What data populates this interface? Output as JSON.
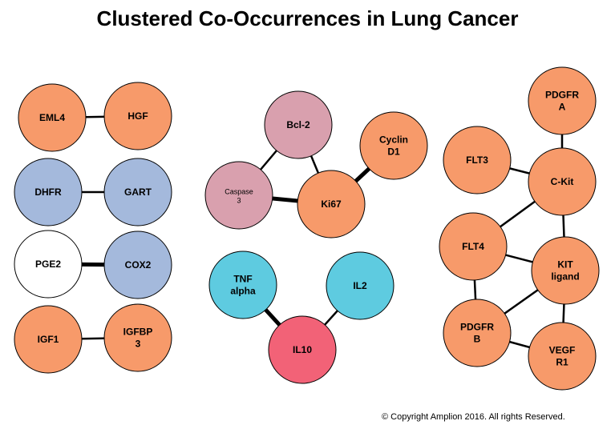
{
  "title": "Clustered Co-Occurrences in Lung Cancer",
  "copyright": "© Copyright Amplion 2016.  All rights Reserved.",
  "colors": {
    "orange": "#F79A6A",
    "blue": "#A4B9DC",
    "white": "#FFFFFF",
    "pink": "#D9A0AE",
    "cyan": "#5ECBE0",
    "red": "#F26277",
    "stroke": "#000000"
  },
  "nodes": [
    {
      "id": "eml4",
      "lines": [
        "EML4"
      ],
      "color": "orange"
    },
    {
      "id": "hgf",
      "lines": [
        "HGF"
      ],
      "color": "orange"
    },
    {
      "id": "dhfr",
      "lines": [
        "DHFR"
      ],
      "color": "blue"
    },
    {
      "id": "gart",
      "lines": [
        "GART"
      ],
      "color": "blue"
    },
    {
      "id": "pge2",
      "lines": [
        "PGE2"
      ],
      "color": "white"
    },
    {
      "id": "cox2",
      "lines": [
        "COX2"
      ],
      "color": "blue"
    },
    {
      "id": "igf1",
      "lines": [
        "IGF1"
      ],
      "color": "orange"
    },
    {
      "id": "igfbp3",
      "lines": [
        "IGFBP",
        "3"
      ],
      "color": "orange"
    },
    {
      "id": "bcl2",
      "lines": [
        "Bcl-2"
      ],
      "color": "pink"
    },
    {
      "id": "caspase3",
      "lines": [
        "Caspase",
        "3"
      ],
      "color": "pink",
      "small": true
    },
    {
      "id": "ki67",
      "lines": [
        "Ki67"
      ],
      "color": "orange"
    },
    {
      "id": "cyclind1",
      "lines": [
        "Cyclin",
        "D1"
      ],
      "color": "orange"
    },
    {
      "id": "tnfalpha",
      "lines": [
        "TNF",
        "alpha"
      ],
      "color": "cyan"
    },
    {
      "id": "il2",
      "lines": [
        "IL2"
      ],
      "color": "cyan"
    },
    {
      "id": "il10",
      "lines": [
        "IL10"
      ],
      "color": "red"
    },
    {
      "id": "pdgfra",
      "lines": [
        "PDGFR",
        "A"
      ],
      "color": "orange"
    },
    {
      "id": "flt3",
      "lines": [
        "FLT3"
      ],
      "color": "orange"
    },
    {
      "id": "ckit",
      "lines": [
        "C-Kit"
      ],
      "color": "orange"
    },
    {
      "id": "flt4",
      "lines": [
        "FLT4"
      ],
      "color": "orange"
    },
    {
      "id": "kitligand",
      "lines": [
        "KIT",
        "ligand"
      ],
      "color": "orange"
    },
    {
      "id": "pdgfrb",
      "lines": [
        "PDGFR",
        "B"
      ],
      "color": "orange"
    },
    {
      "id": "vegfr1",
      "lines": [
        "VEGF",
        "R1"
      ],
      "color": "orange"
    }
  ],
  "edges": [
    {
      "from": "eml4",
      "to": "hgf",
      "weight": "normal"
    },
    {
      "from": "dhfr",
      "to": "gart",
      "weight": "normal"
    },
    {
      "from": "pge2",
      "to": "cox2",
      "weight": "thick"
    },
    {
      "from": "igf1",
      "to": "igfbp3",
      "weight": "normal"
    },
    {
      "from": "bcl2",
      "to": "caspase3",
      "weight": "normal"
    },
    {
      "from": "bcl2",
      "to": "ki67",
      "weight": "normal"
    },
    {
      "from": "caspase3",
      "to": "ki67",
      "weight": "thick"
    },
    {
      "from": "ki67",
      "to": "cyclind1",
      "weight": "thick"
    },
    {
      "from": "tnfalpha",
      "to": "il10",
      "weight": "thick"
    },
    {
      "from": "il2",
      "to": "il10",
      "weight": "normal"
    },
    {
      "from": "pdgfra",
      "to": "ckit",
      "weight": "normal"
    },
    {
      "from": "flt3",
      "to": "ckit",
      "weight": "normal"
    },
    {
      "from": "ckit",
      "to": "flt4",
      "weight": "normal"
    },
    {
      "from": "ckit",
      "to": "kitligand",
      "weight": "normal"
    },
    {
      "from": "flt4",
      "to": "kitligand",
      "weight": "normal"
    },
    {
      "from": "flt4",
      "to": "pdgfrb",
      "weight": "normal"
    },
    {
      "from": "kitligand",
      "to": "pdgfrb",
      "weight": "normal"
    },
    {
      "from": "kitligand",
      "to": "vegfr1",
      "weight": "normal"
    },
    {
      "from": "pdgfrb",
      "to": "vegfr1",
      "weight": "normal"
    }
  ]
}
